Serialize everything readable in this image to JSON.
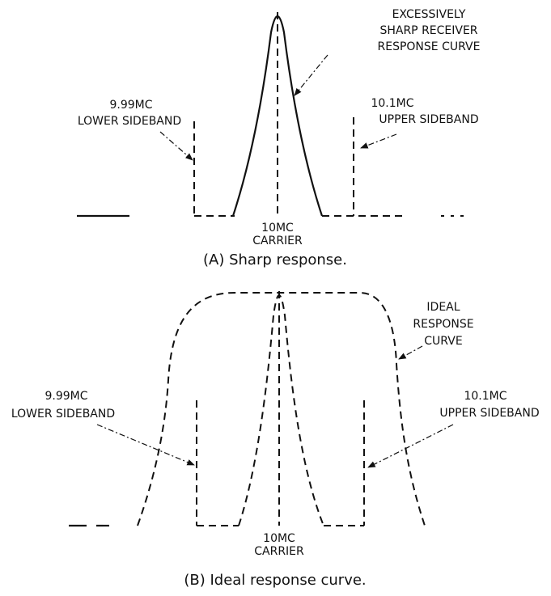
{
  "panels": [
    {
      "curve_label": [
        "EXCESSIVELY",
        "SHARP RECEIVER",
        "RESPONSE CURVE"
      ],
      "lower": [
        "9.99MC",
        "LOWER SIDEBAND"
      ],
      "upper": [
        "10.1MC",
        "UPPER SIDEBAND"
      ],
      "carrier": [
        "10MC",
        "CARRIER"
      ],
      "caption": "(A) Sharp response."
    },
    {
      "curve_label": [
        "IDEAL",
        "RESPONSE",
        "CURVE"
      ],
      "lower": [
        "9.99MC",
        "LOWER SIDEBAND"
      ],
      "upper": [
        "10.1MC",
        "UPPER SIDEBAND"
      ],
      "carrier": [
        "10MC",
        "CARRIER"
      ],
      "caption": "(B) Ideal response curve."
    }
  ]
}
